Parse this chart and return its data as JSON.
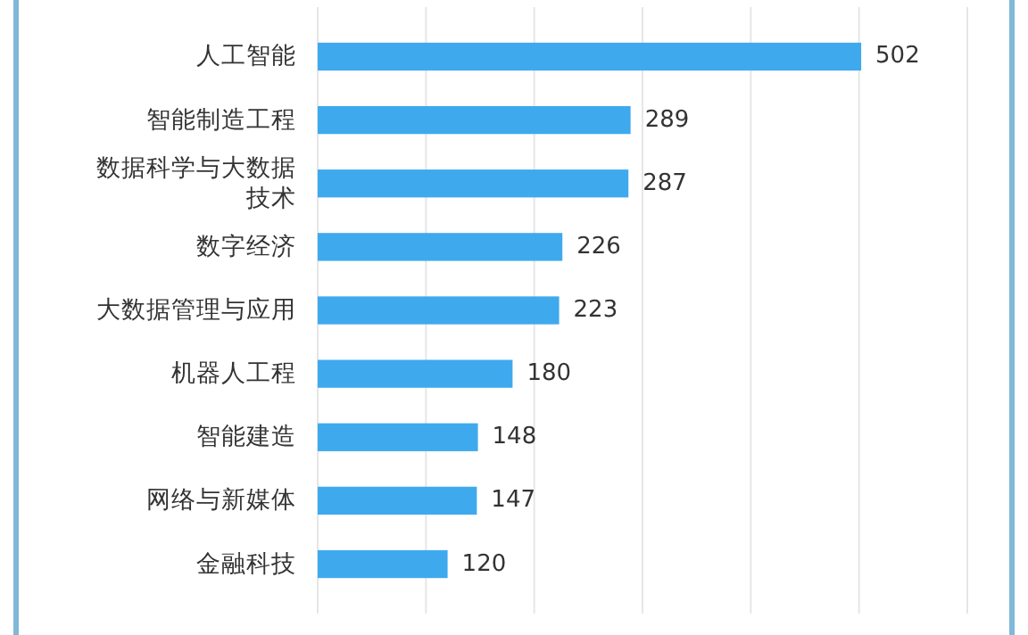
{
  "chart_data": {
    "type": "bar",
    "orientation": "horizontal",
    "categories": [
      "人工智能",
      "智能制造工程",
      "数据科学与大数据技术",
      "数字经济",
      "大数据管理与应用",
      "机器人工程",
      "智能建造",
      "网络与新媒体",
      "金融科技"
    ],
    "values": [
      502,
      289,
      287,
      226,
      223,
      180,
      148,
      147,
      120
    ],
    "color": "#3fa9ee",
    "data_labels": true,
    "grid": "x",
    "tick_labels": "y",
    "xlim": [
      0,
      600
    ],
    "xticks": [
      {
        "value": 0,
        "label": null
      },
      {
        "value": 100,
        "label": null
      },
      {
        "value": 200,
        "label": null
      },
      {
        "value": 300,
        "label": null
      },
      {
        "value": 400,
        "label": null
      },
      {
        "value": 500,
        "label": null
      },
      {
        "value": 600,
        "label": null
      }
    ]
  }
}
